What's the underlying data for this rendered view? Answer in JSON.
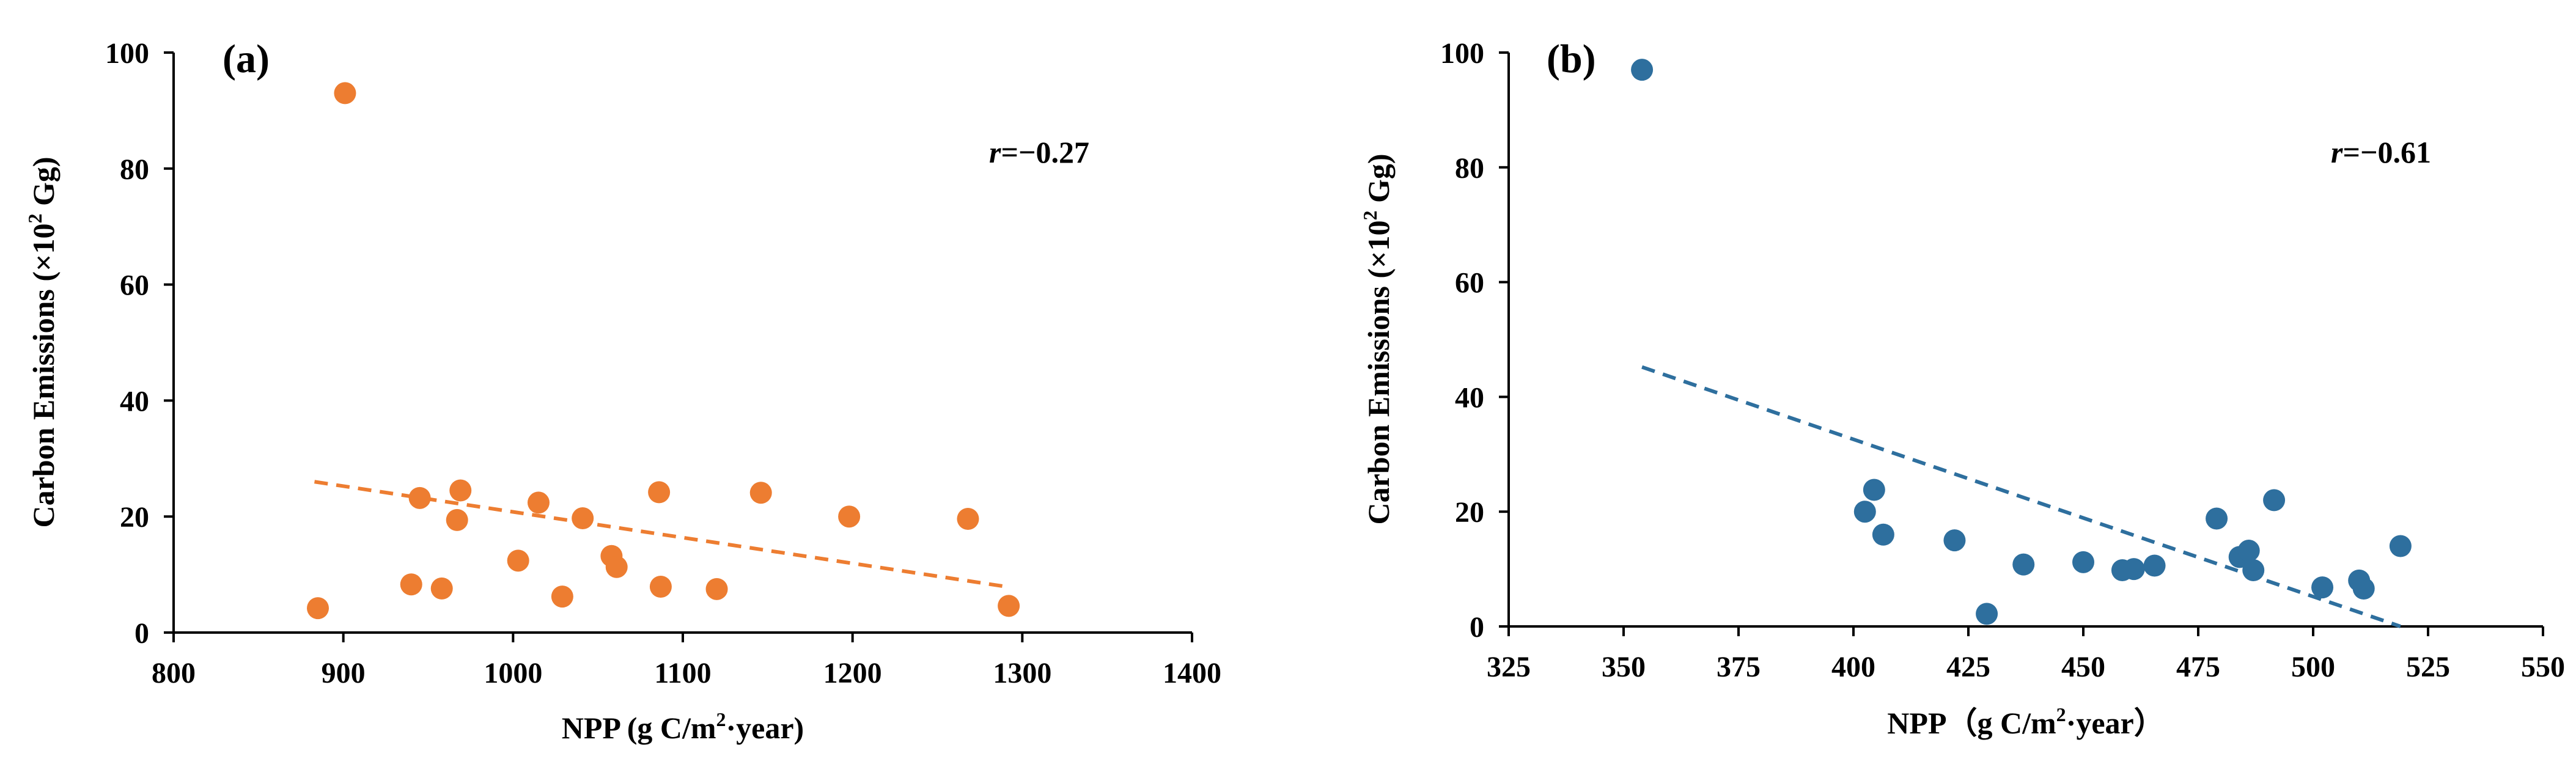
{
  "chart_data": [
    {
      "type": "scatter",
      "panel_label": "(a)",
      "ylabel_prefix": "Carbon Emissions (×10",
      "ylabel_sup": "2",
      "ylabel_suffix": " Gg)",
      "xlabel_prefix": "NPP (g C/m",
      "xlabel_sup": "2",
      "xlabel_suffix": "·year)",
      "xlim": [
        800,
        1400
      ],
      "ylim": [
        0,
        100
      ],
      "x_ticks": [
        "800",
        "900",
        "1000",
        "1100",
        "1200",
        "1300",
        "1400"
      ],
      "y_ticks": [
        "0",
        "20",
        "40",
        "60",
        "80",
        "100"
      ],
      "r_prefix": "r",
      "r_value": "=−0.27",
      "color": "#ED7D31",
      "points": [
        {
          "x": 885,
          "y": 4.2
        },
        {
          "x": 901,
          "y": 93
        },
        {
          "x": 940,
          "y": 8.3
        },
        {
          "x": 945,
          "y": 23.2
        },
        {
          "x": 958,
          "y": 7.6
        },
        {
          "x": 967,
          "y": 19.4
        },
        {
          "x": 969,
          "y": 24.5
        },
        {
          "x": 1003,
          "y": 12.4
        },
        {
          "x": 1015,
          "y": 22.4
        },
        {
          "x": 1029,
          "y": 6.2
        },
        {
          "x": 1041,
          "y": 19.7
        },
        {
          "x": 1058,
          "y": 13.2
        },
        {
          "x": 1061,
          "y": 11.3
        },
        {
          "x": 1086,
          "y": 24.2
        },
        {
          "x": 1087,
          "y": 7.9
        },
        {
          "x": 1120,
          "y": 7.5
        },
        {
          "x": 1146,
          "y": 24.1
        },
        {
          "x": 1198,
          "y": 20
        },
        {
          "x": 1268,
          "y": 19.6
        },
        {
          "x": 1292,
          "y": 4.6
        }
      ],
      "trendline": {
        "x": [
          883,
          1293
        ],
        "y": [
          26,
          7.8
        ]
      }
    },
    {
      "type": "scatter",
      "panel_label": "(b)",
      "ylabel_prefix": "Carbon Emissions (×10",
      "ylabel_sup": "2",
      "ylabel_suffix": " Gg)",
      "xlabel_prefix": "NPP（g C/m",
      "xlabel_sup": "2",
      "xlabel_suffix": "·year）",
      "xlim": [
        325,
        550
      ],
      "ylim": [
        0,
        100
      ],
      "x_ticks": [
        "325",
        "350",
        "375",
        "400",
        "425",
        "450",
        "475",
        "500",
        "525",
        "550"
      ],
      "y_ticks": [
        "0",
        "20",
        "40",
        "60",
        "80",
        "100"
      ],
      "r_prefix": "r",
      "r_value": "=−0.61",
      "color": "#2E6F9E",
      "points": [
        {
          "x": 354,
          "y": 97
        },
        {
          "x": 402.5,
          "y": 20
        },
        {
          "x": 404.5,
          "y": 23.8
        },
        {
          "x": 406.5,
          "y": 16
        },
        {
          "x": 422,
          "y": 15
        },
        {
          "x": 429,
          "y": 2.2
        },
        {
          "x": 437,
          "y": 10.8
        },
        {
          "x": 450,
          "y": 11.2
        },
        {
          "x": 458.5,
          "y": 9.8
        },
        {
          "x": 461,
          "y": 10
        },
        {
          "x": 465.5,
          "y": 10.6
        },
        {
          "x": 479,
          "y": 18.8
        },
        {
          "x": 484,
          "y": 12.1
        },
        {
          "x": 486,
          "y": 13.2
        },
        {
          "x": 487,
          "y": 9.8
        },
        {
          "x": 491.5,
          "y": 22
        },
        {
          "x": 502,
          "y": 6.8
        },
        {
          "x": 510,
          "y": 8
        },
        {
          "x": 511,
          "y": 6.6
        },
        {
          "x": 519,
          "y": 14
        }
      ],
      "trendline": {
        "x": [
          354,
          519
        ],
        "y": [
          45.2,
          0
        ]
      }
    }
  ]
}
